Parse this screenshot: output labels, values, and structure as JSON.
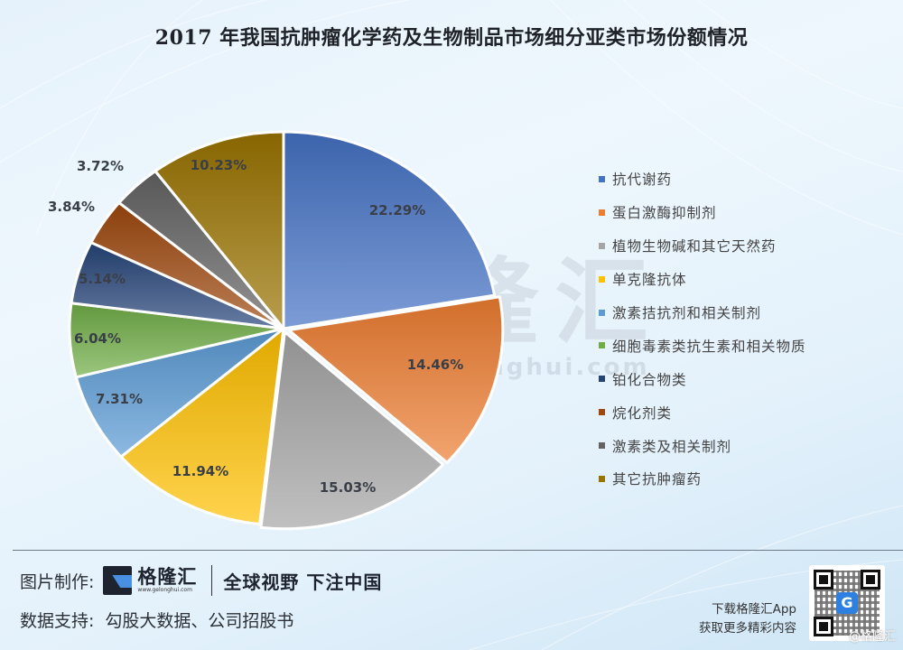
{
  "title": "2017 年我国抗肿瘤化学药及生物制品市场细分亚类市场份额情况",
  "chart_data": {
    "type": "pie",
    "title": "2017 年我国抗肿瘤化学药及生物制品市场细分亚类市场份额情况",
    "categories": [
      "抗代谢药",
      "蛋白激酶抑制剂",
      "植物生物碱和其它天然药",
      "单克隆抗体",
      "激素拮抗剂和相关制剂",
      "细胞毒素类抗生素和相关物质",
      "铂化合物类",
      "烷化剂类",
      "激素类及相关制剂",
      "其它抗肿瘤药"
    ],
    "values": [
      22.29,
      14.46,
      15.03,
      11.94,
      7.31,
      6.04,
      5.14,
      3.84,
      3.72,
      10.23
    ],
    "labels": [
      "22.29%",
      "14.46%",
      "15.03%",
      "11.94%",
      "7.31%",
      "6.04%",
      "5.14%",
      "3.84%",
      "3.72%",
      "10.23%"
    ],
    "colors": [
      "#4472c4",
      "#ed7d31",
      "#a5a5a5",
      "#ffc000",
      "#5b9bd5",
      "#70ad47",
      "#264478",
      "#9e480e",
      "#636363",
      "#997300"
    ],
    "unit": "%",
    "start_angle_deg": 0,
    "direction": "clockwise",
    "legend_position": "right"
  },
  "legend": [
    {
      "label": "抗代谢药",
      "color": "#4472c4"
    },
    {
      "label": "蛋白激酶抑制剂",
      "color": "#ed7d31"
    },
    {
      "label": "植物生物碱和其它天然药",
      "color": "#a5a5a5"
    },
    {
      "label": "单克隆抗体",
      "color": "#ffc000"
    },
    {
      "label": "激素拮抗剂和相关制剂",
      "color": "#5b9bd5"
    },
    {
      "label": "细胞毒素类抗生素和相关物质",
      "color": "#70ad47"
    },
    {
      "label": "铂化合物类",
      "color": "#264478"
    },
    {
      "label": "烷化剂类",
      "color": "#9e480e"
    },
    {
      "label": "激素类及相关制剂",
      "color": "#636363"
    },
    {
      "label": "其它抗肿瘤药",
      "color": "#997300"
    }
  ],
  "watermark": {
    "name": "格隆汇",
    "url": "www.gelonghui.com"
  },
  "footer": {
    "made_by_label": "图片制作:",
    "logo_name": "格隆汇",
    "logo_url": "www.gelonghui.com",
    "slogan": "全球视野 下注中国",
    "data_source_label": "数据支持:",
    "data_source": "勾股大数据、公司招股书",
    "app_line1": "下载格隆汇App",
    "app_line2": "获取更多精彩内容",
    "qr_center_glyph": "G",
    "credit": "@格隆汇"
  }
}
